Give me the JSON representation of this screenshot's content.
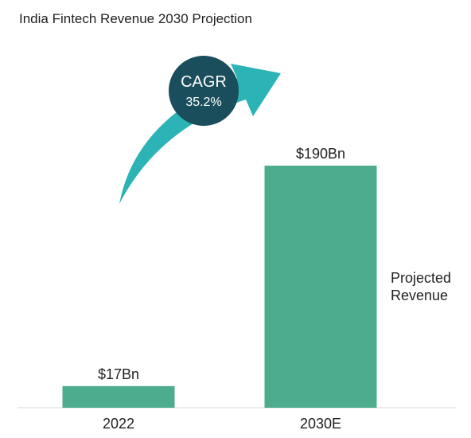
{
  "title": "India Fintech Revenue 2030 Projection",
  "side_label": {
    "line1": "Projected",
    "line2": "Revenue"
  },
  "cagr": {
    "label": "CAGR",
    "value": "35.2%"
  },
  "colors": {
    "bar": "#4eac8e",
    "arrow": "#2bb3b6",
    "badge": "#1a4e5c",
    "baseline": "#d9d9d9"
  },
  "chart_data": {
    "type": "bar",
    "title": "India Fintech Revenue 2030 Projection",
    "categories": [
      "2022",
      "2030E"
    ],
    "values": [
      17,
      190
    ],
    "data_labels": [
      "$17Bn",
      "$190Bn"
    ],
    "unit": "$Bn",
    "ylim": [
      0,
      190
    ],
    "grid": false,
    "legend": "none"
  }
}
